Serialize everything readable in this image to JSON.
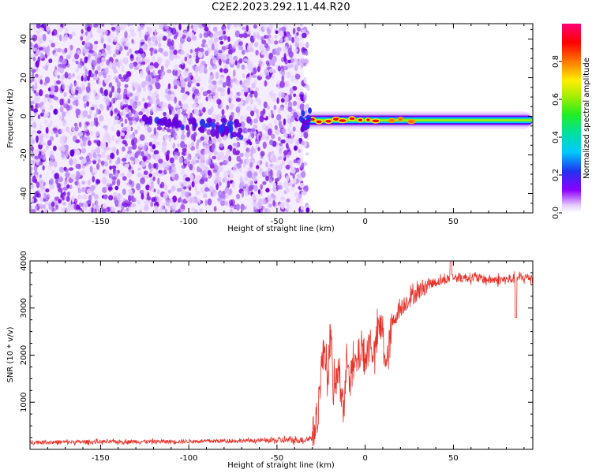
{
  "title": "C2E2.2023.292.11.44.R20",
  "chart_data": [
    {
      "type": "heatmap",
      "xlabel": "Height of straight line (km)",
      "ylabel": "Frequency (Hz)",
      "xlim": [
        -190,
        95
      ],
      "ylim": [
        -50,
        48
      ],
      "xticks": [
        -150,
        -100,
        -50,
        0,
        50
      ],
      "yticks": [
        -40,
        -20,
        0,
        20,
        40
      ],
      "colorbar": {
        "label": "Normalized spectral amplitude",
        "ticks": [
          0.0,
          0.2,
          0.4,
          0.6,
          0.8
        ],
        "tick_labels": [
          "0.0",
          "0.2",
          "0.4",
          "0.6",
          "0.8"
        ],
        "range": [
          0,
          1
        ],
        "colormap": "rainbow (white→purple→blue→cyan→green→yellow→orange→red→magenta)"
      },
      "noise_region_x": [
        -190,
        -35
      ],
      "signal_line": {
        "x_start": -35,
        "x_end": 95,
        "frequency": -2,
        "peak_regions_x": [
          [
            -30,
            10
          ],
          [
            15,
            30
          ]
        ],
        "note": "strong narrow-band signal near 0 Hz for heights above about -35 km"
      },
      "weak_band_x": [
        -125,
        -70
      ]
    },
    {
      "type": "line",
      "xlabel": "Height of straight line (km)",
      "ylabel": "SNR (10 * v/v)",
      "xlim": [
        -190,
        95
      ],
      "ylim": [
        0,
        4000
      ],
      "xticks": [
        -150,
        -100,
        -50,
        0,
        50
      ],
      "yticks": [
        1000,
        2000,
        3000,
        4000
      ],
      "series_color": "#e8332b",
      "series": [
        {
          "x": [
            -190,
            -150,
            -100,
            -50,
            -35,
            -30,
            -27,
            -25,
            -23,
            -21,
            -20,
            -18,
            -15,
            -12,
            -10,
            -8,
            -5,
            -2,
            0,
            3,
            5,
            8,
            10,
            12,
            15,
            18,
            20,
            25,
            30,
            35,
            40,
            45,
            50,
            55,
            60,
            70,
            80,
            90,
            95
          ],
          "y": [
            150,
            160,
            170,
            190,
            200,
            250,
            700,
            1700,
            2200,
            1500,
            2600,
            1200,
            1700,
            900,
            2000,
            1600,
            1800,
            2200,
            1900,
            2300,
            2000,
            2600,
            2500,
            1700,
            2600,
            2900,
            3000,
            3200,
            3350,
            3500,
            3550,
            3600,
            3650,
            3650,
            3650,
            3600,
            3600,
            3650,
            3650
          ]
        }
      ]
    }
  ]
}
